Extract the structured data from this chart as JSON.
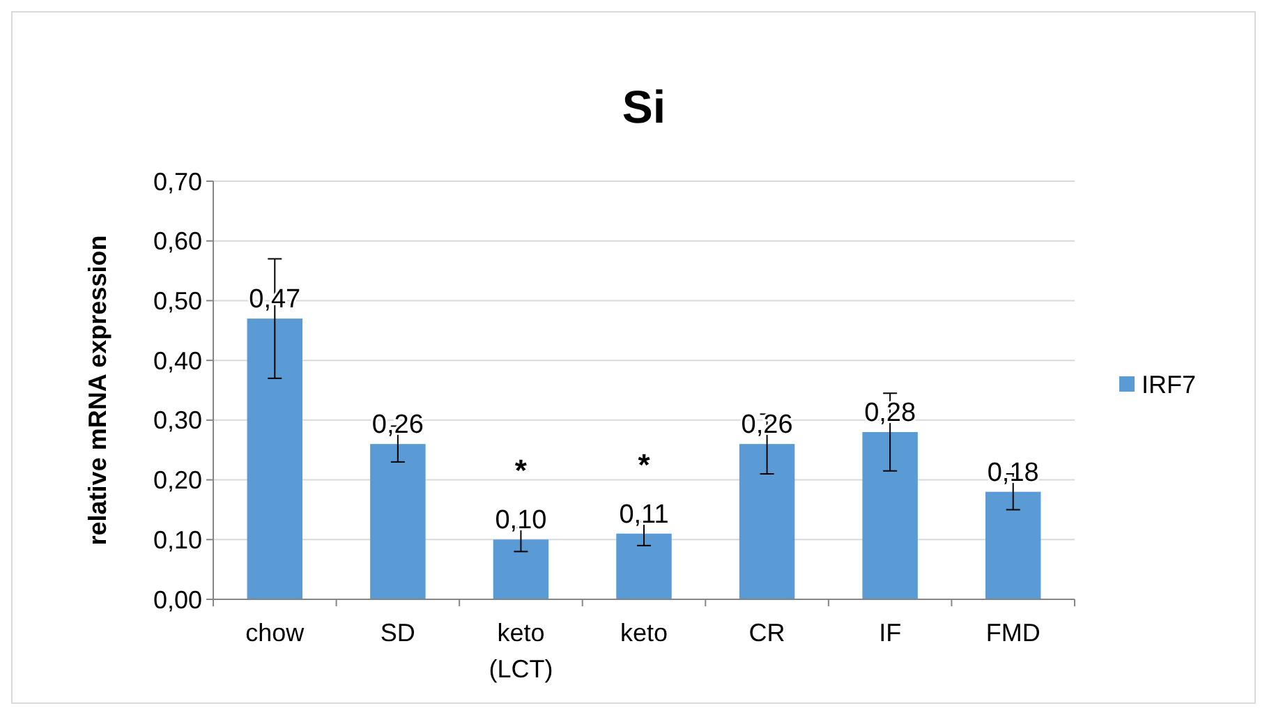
{
  "chart_data": {
    "type": "bar",
    "title": "Si",
    "ylabel": "relative mRNA expression",
    "categories": [
      "chow",
      "SD",
      "keto (LCT)",
      "keto",
      "CR",
      "IF",
      "FMD"
    ],
    "series": [
      {
        "name": "IRF7",
        "color": "#5b9bd5",
        "values": [
          0.47,
          0.26,
          0.1,
          0.11,
          0.26,
          0.28,
          0.18
        ],
        "errors": [
          0.1,
          0.03,
          0.02,
          0.02,
          0.05,
          0.065,
          0.03
        ],
        "value_labels": [
          "0,47",
          "0,26",
          "0,10",
          "0,11",
          "0,26",
          "0,28",
          "0,18"
        ]
      }
    ],
    "ylim": [
      0,
      0.7
    ],
    "yticks": [
      {
        "value": 0,
        "label": "0,00"
      },
      {
        "value": 0.1,
        "label": "0,10"
      },
      {
        "value": 0.2,
        "label": "0,20"
      },
      {
        "value": 0.3,
        "label": "0,30"
      },
      {
        "value": 0.4,
        "label": "0,40"
      },
      {
        "value": 0.5,
        "label": "0,50"
      },
      {
        "value": 0.6,
        "label": "0,60"
      },
      {
        "value": 0.7,
        "label": "0,70"
      }
    ],
    "annotations": [
      {
        "text": "*",
        "x": "keto (LCT)",
        "y": 0.1
      },
      {
        "text": "*",
        "x": "keto",
        "y": 0.11
      }
    ],
    "grid": "y",
    "legend": "right"
  }
}
